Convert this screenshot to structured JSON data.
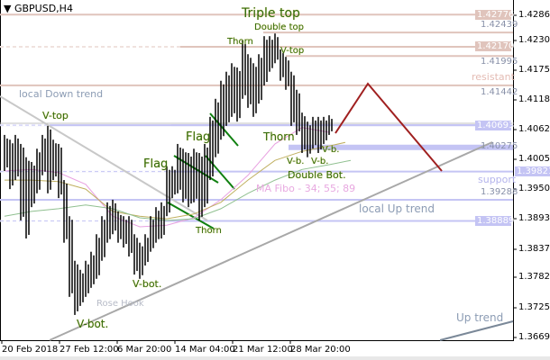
{
  "window": {
    "symbol_title": "GBPUSD,H4",
    "dropdown_icon": "triangle-down-icon"
  },
  "colors": {
    "bars": "#000000",
    "resistance": "#e0c4bc",
    "support": "#c4c4f4",
    "trend": "#aaaaaa",
    "forecast": "#a02020",
    "flag": "#108010",
    "ma34": "#e8a0e0",
    "ma55": "#c0b060",
    "ma89": "#90c090",
    "up_trend": "#7a8898"
  },
  "chart_data": {
    "type": "bar",
    "symbol": "GBPUSD",
    "timeframe": "H4",
    "ylim": [
      1.36695,
      1.4286
    ],
    "y_ticks": [
      "1.42860",
      "1.42305",
      "1.41750",
      "1.41180",
      "1.40625",
      "1.40055",
      "1.39500",
      "1.38935",
      "1.38375",
      "1.37820",
      "1.37250",
      "1.36695"
    ],
    "x_ticks": [
      "20 Feb 2018",
      "27 Feb 12:00",
      "6 Mar 20:00",
      "14 Mar 04:00",
      "21 Mar 12:00",
      "28 Mar 20:00"
    ],
    "bars_high_low": [
      [
        1.4051,
        1.3983
      ],
      [
        1.4042,
        1.3949
      ],
      [
        1.4051,
        1.3966
      ],
      [
        1.4034,
        1.389
      ],
      [
        1.4009,
        1.3856
      ],
      [
        1.4,
        1.3915
      ],
      [
        1.4025,
        1.3941
      ],
      [
        1.4051,
        1.3975
      ],
      [
        1.4068,
        1.3941
      ],
      [
        1.4042,
        1.3966
      ],
      [
        1.4034,
        1.3932
      ],
      [
        1.3966,
        1.3848
      ],
      [
        1.3898,
        1.3746
      ],
      [
        1.3814,
        1.3712
      ],
      [
        1.3797,
        1.3729
      ],
      [
        1.3814,
        1.3746
      ],
      [
        1.3831,
        1.3763
      ],
      [
        1.3864,
        1.378
      ],
      [
        1.3898,
        1.3814
      ],
      [
        1.3924,
        1.3848
      ],
      [
        1.3929,
        1.3864
      ],
      [
        1.3907,
        1.3848
      ],
      [
        1.3898,
        1.3839
      ],
      [
        1.3898,
        1.3822
      ],
      [
        1.3864,
        1.3788
      ],
      [
        1.3848,
        1.378
      ],
      [
        1.3864,
        1.3805
      ],
      [
        1.3898,
        1.3831
      ],
      [
        1.3915,
        1.3848
      ],
      [
        1.3924,
        1.3856
      ],
      [
        1.3992,
        1.3898
      ],
      [
        1.3992,
        1.3932
      ],
      [
        1.4034,
        1.3941
      ],
      [
        1.4025,
        1.3924
      ],
      [
        1.4017,
        1.3915
      ],
      [
        1.4025,
        1.3924
      ],
      [
        1.4017,
        1.389
      ],
      [
        1.4034,
        1.3915
      ],
      [
        1.4085,
        1.3966
      ],
      [
        1.4119,
        1.4009
      ],
      [
        1.4153,
        1.4042
      ],
      [
        1.417,
        1.4068
      ],
      [
        1.4186,
        1.4085
      ],
      [
        1.4178,
        1.4076
      ],
      [
        1.4229,
        1.4119
      ],
      [
        1.4203,
        1.4102
      ],
      [
        1.4186,
        1.4085
      ],
      [
        1.4203,
        1.411
      ],
      [
        1.4237,
        1.4144
      ],
      [
        1.4237,
        1.417
      ],
      [
        1.4242,
        1.4186
      ],
      [
        1.4212,
        1.4153
      ],
      [
        1.4198,
        1.4136
      ],
      [
        1.417,
        1.4068
      ],
      [
        1.4136,
        1.4051
      ],
      [
        1.4093,
        1.4017
      ],
      [
        1.4076,
        1.4009
      ],
      [
        1.4085,
        1.4025
      ],
      [
        1.4085,
        1.4017
      ],
      [
        1.4085,
        1.4034
      ],
      [
        1.4088,
        1.4051
      ]
    ],
    "moving_averages": [
      {
        "name": "MA 34",
        "color": "#e8a0e0",
        "points": [
          [
            0,
            1.3983
          ],
          [
            5,
            1.3986
          ],
          [
            10,
            1.398
          ],
          [
            15,
            1.3958
          ],
          [
            20,
            1.3898
          ],
          [
            25,
            1.3878
          ],
          [
            30,
            1.3881
          ],
          [
            35,
            1.3895
          ],
          [
            40,
            1.3929
          ],
          [
            45,
            1.3975
          ],
          [
            50,
            1.4034
          ],
          [
            55,
            1.4065
          ],
          [
            60,
            1.4056
          ]
        ]
      },
      {
        "name": "MA 55",
        "color": "#c0b060",
        "points": [
          [
            0,
            1.3966
          ],
          [
            5,
            1.3966
          ],
          [
            10,
            1.3963
          ],
          [
            15,
            1.3949
          ],
          [
            20,
            1.3907
          ],
          [
            25,
            1.3898
          ],
          [
            30,
            1.3893
          ],
          [
            35,
            1.3902
          ],
          [
            40,
            1.3924
          ],
          [
            45,
            1.3966
          ],
          [
            50,
            1.4003
          ],
          [
            55,
            1.402
          ],
          [
            60,
            1.403
          ],
          [
            63,
            1.4037
          ]
        ]
      },
      {
        "name": "MA 89",
        "color": "#90c090",
        "points": [
          [
            0,
            1.3898
          ],
          [
            5,
            1.3907
          ],
          [
            10,
            1.3912
          ],
          [
            15,
            1.3919
          ],
          [
            20,
            1.3912
          ],
          [
            25,
            1.3895
          ],
          [
            30,
            1.389
          ],
          [
            35,
            1.3893
          ],
          [
            40,
            1.3912
          ],
          [
            45,
            1.3941
          ],
          [
            50,
            1.3966
          ],
          [
            55,
            1.3986
          ],
          [
            60,
            1.3995
          ],
          [
            64,
            1.4003
          ]
        ]
      }
    ],
    "levels": [
      {
        "price": 1.42776,
        "kind": "resistance",
        "tag": "1.42776"
      },
      {
        "price": 1.42439,
        "kind": "resistance",
        "label": "1.42439"
      },
      {
        "price": 1.4217,
        "kind": "resistance",
        "tag": "1.42170"
      },
      {
        "price": 1.41995,
        "kind": "resistance",
        "label": "1.41995"
      },
      {
        "price": 1.41442,
        "kind": "resistance",
        "label": "1.41442"
      },
      {
        "price": 1.40693,
        "kind": "support",
        "tag": "1.40693"
      },
      {
        "price": 1.40275,
        "kind": "support",
        "label": "1.40275"
      },
      {
        "price": 1.39821,
        "kind": "support",
        "tag": "1.39821"
      },
      {
        "price": 1.39288,
        "kind": "support",
        "label": "1.39288"
      },
      {
        "price": 1.38889,
        "kind": "support",
        "tag": "1.38889"
      }
    ],
    "annotations": {
      "triple_top": "Triple top",
      "double_top": "Double top",
      "thorn_top": "Thorn",
      "v_top_right": "V-top",
      "v_top_left": "V-top",
      "local_down_trend": "local Down trend",
      "resistant": "resistant",
      "flag_upper": "Flag",
      "flag_lower": "Flag",
      "thorn_mid": "Thorn",
      "vb1": "V-b.",
      "vb2": "V-b.",
      "vb3": "V-b.",
      "double_bot": "Double Bot.",
      "ma_fibo": "MA Fibo - 34; 55; 89",
      "support": "support",
      "local_up_trend": "local  Up trend",
      "thorn_low": "Thorn",
      "v_bot_mid": "V-bot.",
      "rose_hook": "Rose Hook",
      "v_bot_left": "V-bot.",
      "up_trend": "Up trend"
    }
  }
}
